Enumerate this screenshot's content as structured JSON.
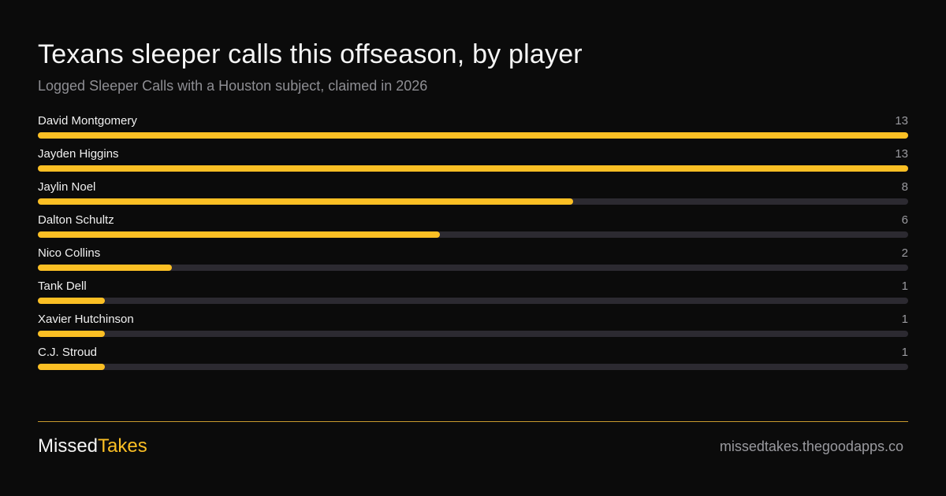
{
  "header": {
    "title": "Texans  sleeper calls this offseason,  by player",
    "subtitle": "Logged Sleeper Calls with a Houston subject, claimed in 2026"
  },
  "colors": {
    "background": "#0b0b0b",
    "bar_fill": "#fbbf24",
    "bar_track": "#2c2a31",
    "divider": "#c99a2e"
  },
  "chart_data": {
    "type": "bar",
    "orientation": "horizontal",
    "title": "Texans  sleeper calls this offseason,  by player",
    "subtitle": "Logged Sleeper Calls with a Houston subject, claimed in 2026",
    "categories": [
      "David Montgomery",
      "Jayden Higgins",
      "Jaylin Noel",
      "Dalton Schultz",
      "Nico Collins",
      "Tank Dell",
      "Xavier Hutchinson",
      "C.J. Stroud"
    ],
    "values": [
      13,
      13,
      8,
      6,
      2,
      1,
      1,
      1
    ],
    "value_labels": [
      "13",
      "13",
      "8",
      "6",
      "2",
      "1",
      "1",
      "1"
    ],
    "xlim": [
      0,
      13
    ],
    "grid": false,
    "legend": "none"
  },
  "footer": {
    "brand_part1": "Missed",
    "brand_part2": "Takes",
    "site": "missedtakes.thegoodapps.co"
  }
}
